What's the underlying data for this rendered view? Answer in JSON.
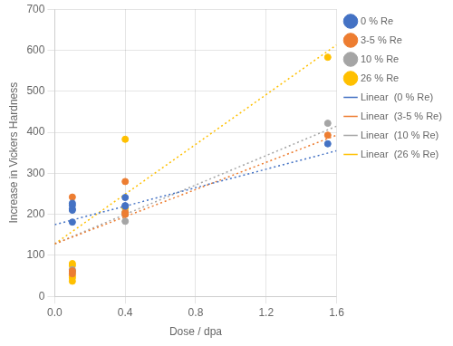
{
  "chart_data": {
    "type": "scatter",
    "xlabel": "Dose / dpa",
    "ylabel": "Increase in Vickers Hardness",
    "xlim": [
      0,
      1.6
    ],
    "ylim": [
      0,
      700
    ],
    "xticks": [
      {
        "value": 0,
        "label": "0.0"
      },
      0.4,
      0.8,
      1.2,
      1.6
    ],
    "yticks": [
      0,
      100,
      200,
      300,
      400,
      500,
      600,
      700
    ],
    "grid": true,
    "legend": "right",
    "series": [
      {
        "name": "0 % Re",
        "type": "scatter",
        "color": "#4472C4",
        "marker": "circle",
        "x": [
          0.1,
          0.1,
          0.1,
          0.1,
          0.1,
          0.4,
          0.4,
          0.4,
          1.55
        ],
        "values": [
          181,
          210,
          213,
          222,
          227,
          220,
          221,
          241,
          372
        ]
      },
      {
        "name": "3-5 % Re",
        "type": "scatter",
        "color": "#ED7D31",
        "marker": "circle",
        "x": [
          0.1,
          0.1,
          0.1,
          0.4,
          0.4,
          0.4,
          1.55
        ],
        "values": [
          55,
          62,
          242,
          200,
          204,
          280,
          393
        ]
      },
      {
        "name": "10 % Re",
        "type": "scatter",
        "color": "#A5A5A5",
        "marker": "circle",
        "x": [
          0.1,
          0.1,
          0.4,
          0.4,
          0.4,
          1.55
        ],
        "values": [
          60,
          65,
          183,
          200,
          205,
          422
        ]
      },
      {
        "name": "26 % Re",
        "type": "scatter",
        "color": "#FFC000",
        "marker": "circle",
        "x": [
          0.1,
          0.1,
          0.1,
          0.1,
          0.1,
          0.1,
          0.4,
          0.4,
          0.4,
          1.55
        ],
        "values": [
          37,
          45,
          50,
          60,
          75,
          80,
          205,
          215,
          383,
          583
        ]
      },
      {
        "name": "Linear  (0 % Re)",
        "type": "line",
        "color": "#4472C4",
        "line_style": "dotted",
        "x": [
          0.0,
          1.6
        ],
        "values": [
          175,
          355
        ]
      },
      {
        "name": "Linear  (3-5 % Re)",
        "type": "line",
        "color": "#ED7D31",
        "line_style": "dotted",
        "x": [
          0.0,
          1.6
        ],
        "values": [
          128,
          393
        ]
      },
      {
        "name": "Linear  (10 % Re)",
        "type": "line",
        "color": "#A5A5A5",
        "line_style": "dotted",
        "x": [
          0.0,
          1.6
        ],
        "values": [
          128,
          415
        ]
      },
      {
        "name": "Linear  (26 % Re)",
        "type": "line",
        "color": "#FFC000",
        "line_style": "dotted",
        "x": [
          0.0,
          1.6
        ],
        "values": [
          128,
          613
        ]
      }
    ]
  }
}
